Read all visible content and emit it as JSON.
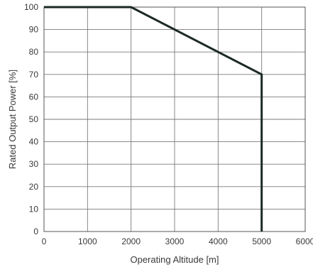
{
  "chart_data": {
    "type": "line",
    "title": "",
    "xlabel": "Operating Altitude [m]",
    "ylabel": "Rated Output Power [%]",
    "xlim": [
      0,
      6000
    ],
    "ylim": [
      0,
      100
    ],
    "x_ticks": [
      0,
      1000,
      2000,
      3000,
      4000,
      5000,
      6000
    ],
    "y_ticks": [
      0,
      10,
      20,
      30,
      40,
      50,
      60,
      70,
      80,
      90,
      100
    ],
    "x_tick_labels": [
      "0",
      "1000",
      "2000",
      "3000",
      "4000",
      "5000",
      "6000"
    ],
    "y_tick_labels": [
      "0",
      "10",
      "20",
      "30",
      "40",
      "50",
      "60",
      "70",
      "80",
      "90",
      "100"
    ],
    "grid": true,
    "legend": "none",
    "series": [
      {
        "x": [
          0,
          2000,
          5000,
          5000
        ],
        "y": [
          100,
          100,
          70,
          0
        ],
        "color": "#1c2a24"
      }
    ]
  }
}
